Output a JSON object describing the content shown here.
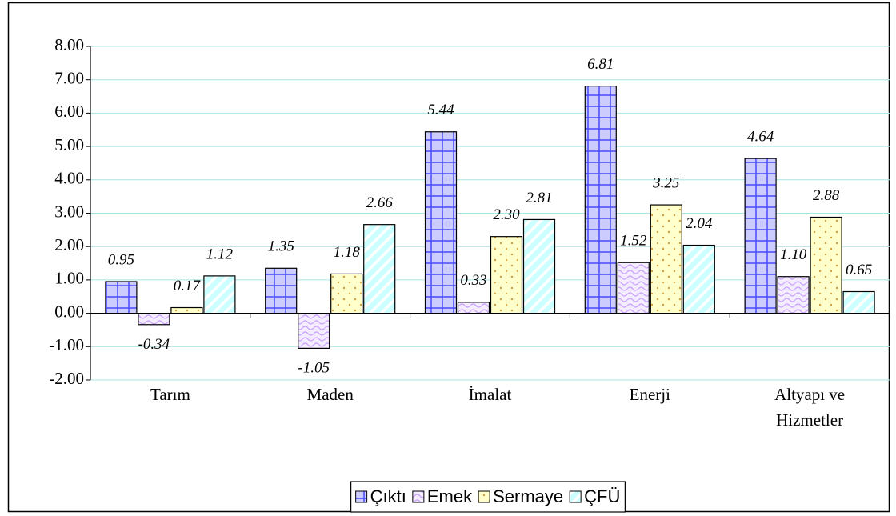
{
  "chart_data": {
    "type": "bar",
    "categories": [
      "Tarım",
      "Maden",
      "İmalat",
      "Enerji",
      "Altyapı ve Hizmetler"
    ],
    "series": [
      {
        "name": "Çıktı",
        "color": "#ccccff",
        "values": [
          0.95,
          1.35,
          5.44,
          6.81,
          4.64
        ],
        "value_labels": [
          "0.95",
          "1.35",
          "5.44",
          "6.81",
          "4.64"
        ]
      },
      {
        "name": "Emek",
        "color": "#f4ecff",
        "values": [
          -0.34,
          -1.05,
          0.33,
          1.52,
          1.1
        ],
        "value_labels": [
          "-0.34",
          "-1.05",
          "0.33",
          "1.52",
          "1.10"
        ]
      },
      {
        "name": "Sermaye",
        "color": "#ffffcc",
        "values": [
          0.17,
          1.18,
          2.3,
          3.25,
          2.88
        ],
        "value_labels": [
          "0.17",
          "1.18",
          "2.30",
          "3.25",
          "2.88"
        ]
      },
      {
        "name": "ÇFÜ",
        "color": "#ccffff",
        "values": [
          1.12,
          2.66,
          2.81,
          2.04,
          0.65
        ],
        "value_labels": [
          "1.12",
          "2.66",
          "2.81",
          "2.04",
          "0.65"
        ]
      }
    ],
    "ylim": [
      -2,
      8
    ],
    "yticks": [
      {
        "value": -2,
        "label": "-2.00"
      },
      {
        "value": -1,
        "label": "-1.00"
      },
      {
        "value": 0,
        "label": "0.00"
      },
      {
        "value": 1,
        "label": "1.00"
      },
      {
        "value": 2,
        "label": "2.00"
      },
      {
        "value": 3,
        "label": "3.00"
      },
      {
        "value": 4,
        "label": "4.00"
      },
      {
        "value": 5,
        "label": "5.00"
      },
      {
        "value": 6,
        "label": "6.00"
      },
      {
        "value": 7,
        "label": "7.00"
      },
      {
        "value": 8,
        "label": "8.00"
      }
    ],
    "grid": true,
    "legend": "bottom"
  }
}
